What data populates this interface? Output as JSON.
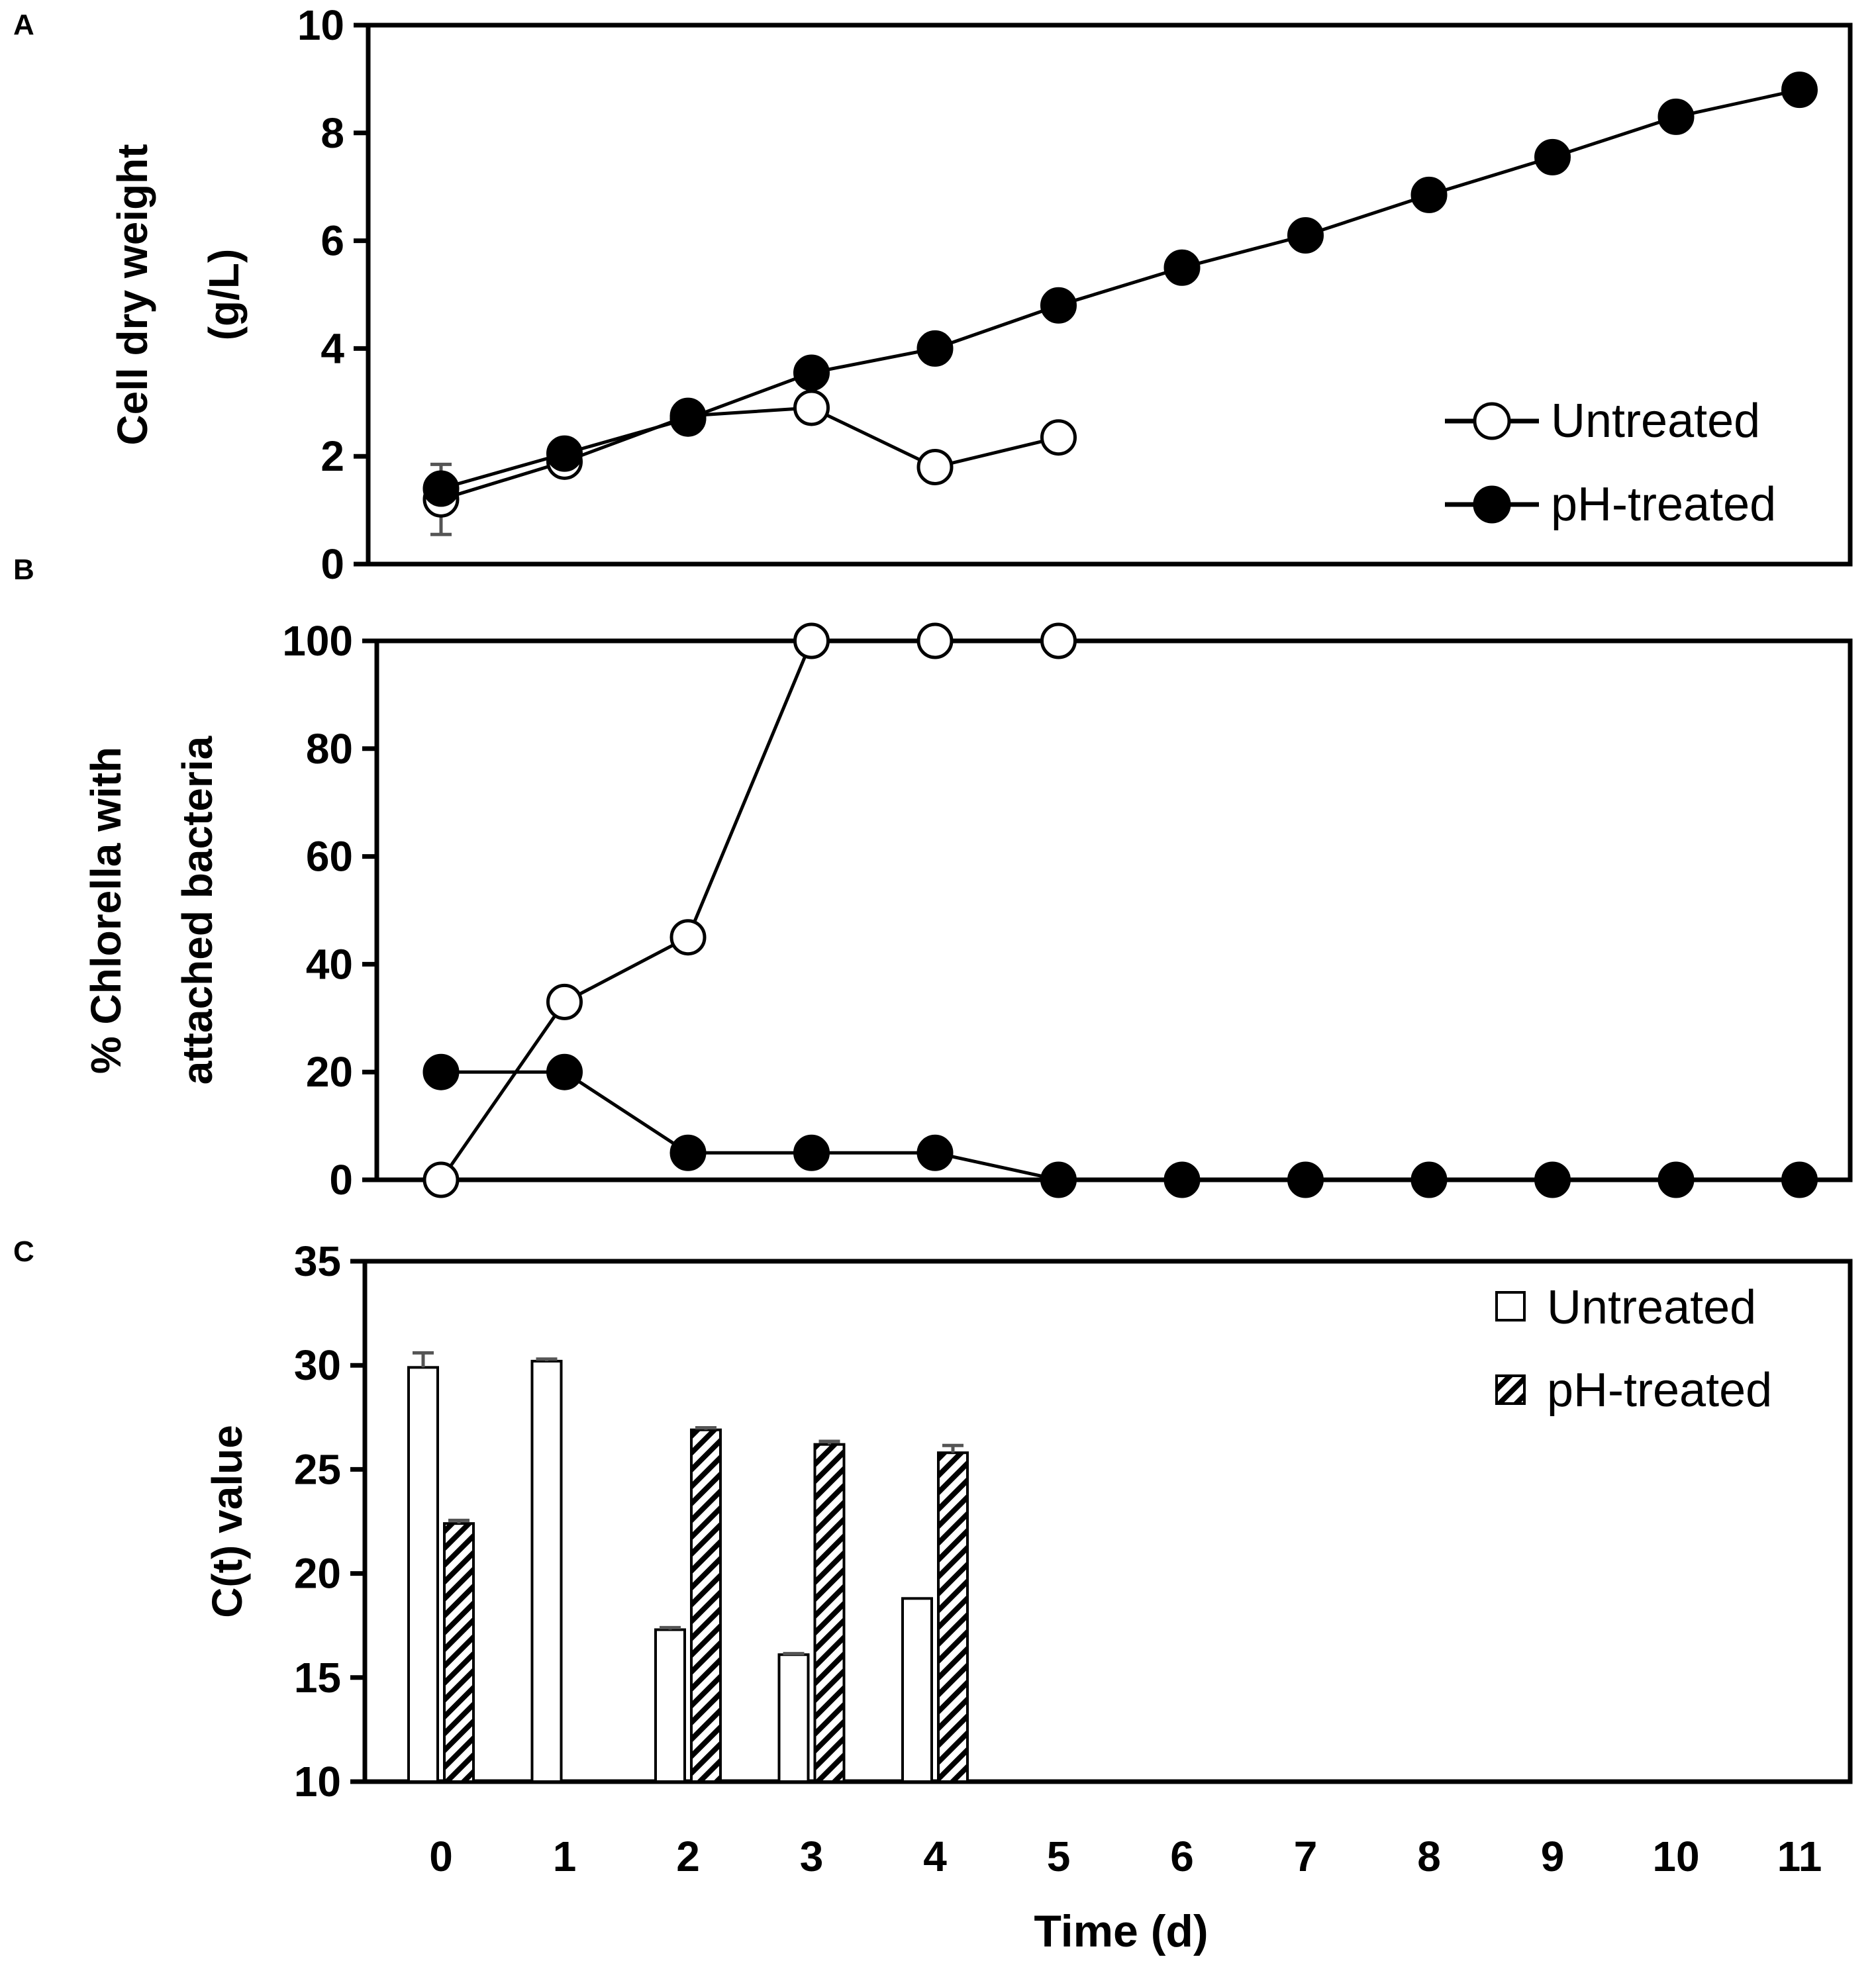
{
  "colors": {
    "axis": "#000000",
    "error_bar": "#555555",
    "background": "#ffffff",
    "marker_open": "#ffffff",
    "marker_filled": "#000000"
  },
  "chart_data": [
    {
      "panel": "A",
      "type": "line",
      "ylabel_lines": [
        "Cell dry weight",
        "(g/L)"
      ],
      "ylim": [
        0,
        10
      ],
      "yticks": [
        0,
        2,
        4,
        6,
        8,
        10
      ],
      "xlim": [
        -0.5,
        11.5
      ],
      "legend": "right",
      "series": [
        {
          "name": "Untreated",
          "marker": "open-circle",
          "x": [
            0,
            1,
            2,
            3,
            4,
            5
          ],
          "y": [
            1.2,
            1.9,
            2.75,
            2.9,
            1.8,
            2.35
          ],
          "err": [
            0.65,
            0,
            0,
            0,
            0,
            0
          ]
        },
        {
          "name": "pH-treated",
          "marker": "filled-circle",
          "x": [
            0,
            1,
            2,
            3,
            4,
            5,
            6,
            7,
            8,
            9,
            10,
            11
          ],
          "y": [
            1.4,
            2.05,
            2.7,
            3.55,
            4.0,
            4.8,
            5.5,
            6.1,
            6.85,
            7.55,
            8.3,
            8.8
          ],
          "err": [
            0.2,
            0,
            0,
            0,
            0.25,
            0,
            0,
            0,
            0,
            0,
            0,
            0
          ]
        }
      ]
    },
    {
      "panel": "B",
      "type": "line",
      "ylabel_lines": [
        "% Chlorella with",
        "attached bacteria"
      ],
      "ylim": [
        0,
        100
      ],
      "yticks": [
        0,
        20,
        40,
        60,
        80,
        100
      ],
      "xlim": [
        -0.5,
        11.5
      ],
      "series": [
        {
          "name": "Untreated",
          "marker": "open-circle",
          "x": [
            0,
            1,
            2,
            3,
            4,
            5
          ],
          "y": [
            0,
            33,
            45,
            100,
            100,
            100
          ]
        },
        {
          "name": "pH-treated",
          "marker": "filled-circle",
          "x": [
            0,
            1,
            2,
            3,
            4,
            5,
            6,
            7,
            8,
            9,
            10,
            11
          ],
          "y": [
            20,
            20,
            5,
            5,
            5,
            0,
            0,
            0,
            0,
            0,
            0,
            0
          ]
        }
      ]
    },
    {
      "panel": "C",
      "type": "bar",
      "ylabel_lines": [
        "C(t) value"
      ],
      "xlabel": "Time (d)",
      "ylim": [
        10,
        35
      ],
      "yticks": [
        10,
        15,
        20,
        25,
        30,
        35
      ],
      "xlim": [
        -0.5,
        11.5
      ],
      "categories": [
        "0",
        "1",
        "2",
        "3",
        "4",
        "5",
        "6",
        "7",
        "8",
        "9",
        "10",
        "11"
      ],
      "legend": "top-right",
      "series": [
        {
          "name": "Untreated",
          "pattern": "open",
          "values": [
            29.9,
            30.2,
            17.3,
            16.1,
            18.8,
            null,
            null,
            null,
            null,
            null,
            null,
            null
          ],
          "err": [
            0.7,
            0.1,
            0.1,
            0.05,
            0,
            0,
            0,
            0,
            0,
            0,
            0,
            0
          ]
        },
        {
          "name": "pH-treated",
          "pattern": "hatched",
          "values": [
            22.4,
            null,
            26.9,
            26.2,
            25.8,
            null,
            null,
            null,
            null,
            null,
            null,
            null
          ],
          "err": [
            0.15,
            0,
            0.1,
            0.15,
            0.35,
            0,
            0,
            0,
            0,
            0,
            0,
            0
          ]
        }
      ]
    }
  ]
}
